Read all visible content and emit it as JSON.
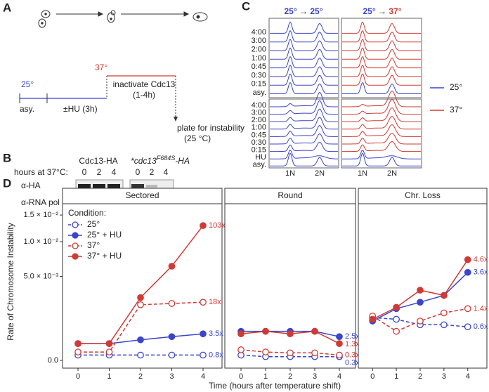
{
  "panel_a": {
    "label": "A",
    "temp_start": "25°",
    "asy": "asy.",
    "hu": "±HU (3h)",
    "temp_shift": "37°",
    "inactivate": "inactivate Cdc13",
    "duration": "(1-4h)",
    "plate": "plate for instability",
    "plate_temp": "(25 °C)"
  },
  "panel_b": {
    "label": "B",
    "strain1": "Cdc13-HA",
    "strain2": {
      "prefix": "*cdc13",
      "superscript": "F684S",
      "suffix": "-HA"
    },
    "hours_label": "hours at 37°C:",
    "lanes": [
      0,
      2,
      4
    ],
    "rows": [
      "α-HA",
      "α-RNA pol II"
    ]
  },
  "panel_c": {
    "label": "C",
    "header_left": [
      "25°",
      "→",
      "25°"
    ],
    "header_right": [
      "25°",
      "→",
      "37°"
    ],
    "top_rows": [
      "4:00",
      "3:00",
      "2:00",
      "1:00",
      "0:45",
      "0:30",
      "0:15",
      "asy."
    ],
    "bottom_rows": [
      "4:00",
      "3:00",
      "2:00",
      "1:00",
      "0:45",
      "0:30",
      "0:15",
      "HU",
      "asy."
    ],
    "x_labels": [
      "1N",
      "2N"
    ],
    "legend": [
      {
        "name": "25°",
        "color": "#3a45c9"
      },
      {
        "name": "37°",
        "color": "#d03a35"
      }
    ]
  },
  "panel_d_label": "D",
  "chart_data": {
    "type": "line",
    "xlabel": "Time (hours after temperature shift)",
    "ylabel": "Rate of Chromosome Instability",
    "x": [
      0,
      1,
      2,
      3,
      4
    ],
    "xlim": [
      -0.4,
      4.4
    ],
    "xticks": [
      0,
      1,
      2,
      3,
      4
    ],
    "ylim": [
      0,
      0.0165
    ],
    "yscale": "sqrt",
    "yticks": [
      {
        "value": 0,
        "label": "0.0"
      },
      {
        "value": 0.005,
        "label": "5.0 × 10⁻³"
      },
      {
        "value": 0.01,
        "label": "1.0 × 10⁻²"
      },
      {
        "value": 0.015,
        "label": "1.5 × 10⁻²"
      }
    ],
    "legend": {
      "title": "Condition:",
      "position": "top-left"
    },
    "series": [
      {
        "name": "25°",
        "color": "#3a45c9",
        "filled": false,
        "dashed": true
      },
      {
        "name": "25° + HU",
        "color": "#3a45c9",
        "filled": true,
        "dashed": false
      },
      {
        "name": "37°",
        "color": "#d03a35",
        "filled": false,
        "dashed": true
      },
      {
        "name": "37° + HU",
        "color": "#d03a35",
        "filled": true,
        "dashed": false
      }
    ],
    "facets": [
      {
        "title": "Sectored",
        "values": [
          [
            2e-05,
            2e-05,
            2e-05,
            2e-05,
            2e-05
          ],
          [
            0.0002,
            0.0002,
            0.0003,
            0.0004,
            0.0005
          ],
          [
            5e-05,
            5e-05,
            0.0022,
            0.0023,
            0.0024
          ],
          [
            0.0002,
            0.0002,
            0.0028,
            0.0063,
            0.0129
          ]
        ],
        "end_labels": [
          "0.8x",
          "3.5x",
          "18x",
          "103x"
        ]
      },
      {
        "title": "Round",
        "values": [
          [
            2e-05,
            1e-05,
            1e-05,
            1e-05,
            1e-05
          ],
          [
            0.0006,
            0.0006,
            0.0006,
            0.0006,
            0.0004
          ],
          [
            8e-05,
            5e-05,
            4e-05,
            4e-05,
            2e-05
          ],
          [
            0.0005,
            0.0006,
            0.0005,
            0.0006,
            0.0002
          ]
        ],
        "end_labels": [
          "0.3x",
          "2.5x",
          "0.3x",
          "1.3x"
        ]
      },
      {
        "title": "Chr. Loss",
        "values": [
          [
            0.0013,
            0.0012,
            0.0009,
            0.0009,
            0.0008
          ],
          [
            0.0011,
            0.0019,
            0.0024,
            0.003,
            0.0055
          ],
          [
            0.0014,
            0.0006,
            0.0011,
            0.0016,
            0.0019
          ],
          [
            0.0012,
            0.002,
            0.0035,
            0.003,
            0.0072
          ]
        ],
        "end_labels": [
          "0.6x",
          "3.6x",
          "1.4x",
          "4.6x"
        ]
      }
    ]
  }
}
